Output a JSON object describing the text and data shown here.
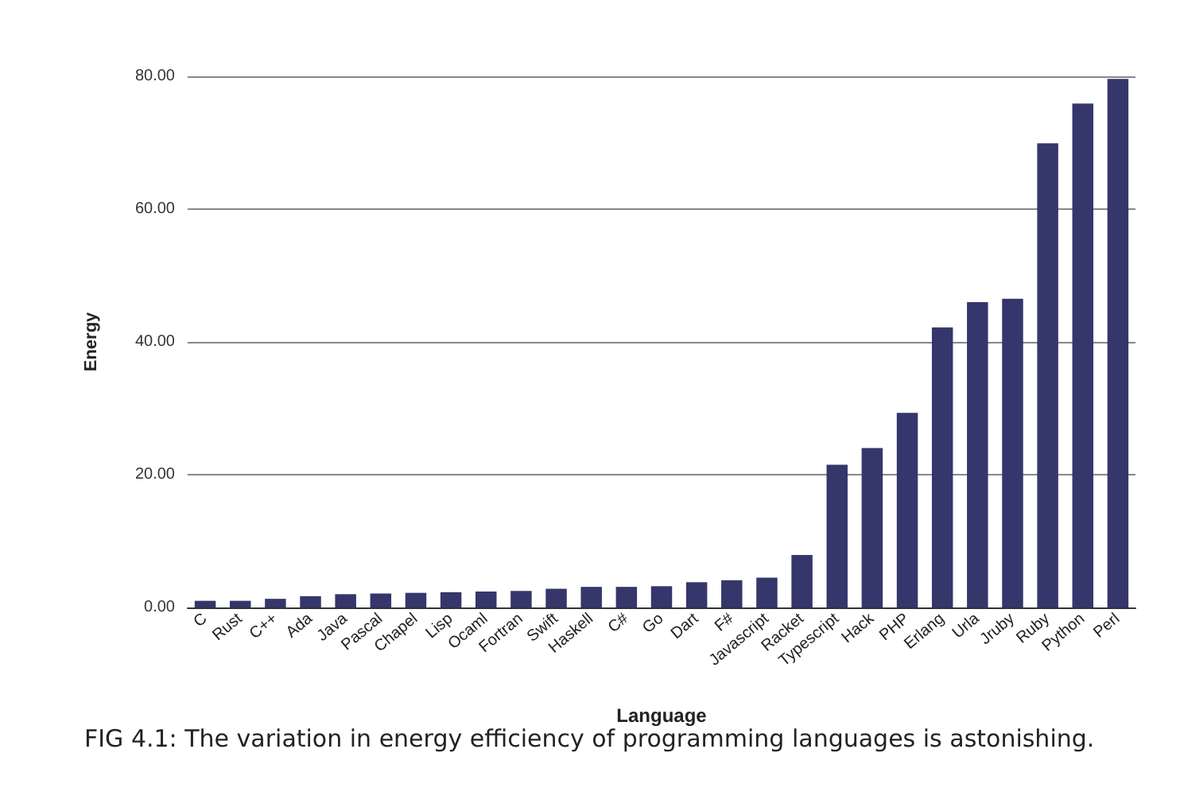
{
  "chart_data": {
    "type": "bar",
    "xlabel": "Language",
    "ylabel": "Energy",
    "categories": [
      "C",
      "Rust",
      "C++",
      "Ada",
      "Java",
      "Pascal",
      "Chapel",
      "Lisp",
      "Ocaml",
      "Fortran",
      "Swift",
      "Haskell",
      "C#",
      "Go",
      "Dart",
      "F#",
      "Javascript",
      "Racket",
      "Typescript",
      "Hack",
      "PHP",
      "Erlang",
      "Urla",
      "Jruby",
      "Ruby",
      "Python",
      "Perl"
    ],
    "values": [
      1.0,
      1.0,
      1.3,
      1.7,
      2.0,
      2.1,
      2.2,
      2.3,
      2.4,
      2.5,
      2.8,
      3.1,
      3.1,
      3.2,
      3.8,
      4.1,
      4.5,
      7.9,
      21.5,
      24.0,
      29.3,
      42.2,
      46.0,
      46.5,
      69.9,
      75.9,
      79.6
    ],
    "color": "#35366b",
    "ylim": [
      0,
      80
    ],
    "yticks": [
      {
        "value": 0,
        "label": "0.00"
      },
      {
        "value": 20,
        "label": "20.00"
      },
      {
        "value": 40,
        "label": "40.00"
      },
      {
        "value": 60,
        "label": "60.00"
      },
      {
        "value": 80,
        "label": "80.00"
      }
    ],
    "grid": "y",
    "annotations": [
      "FIG 4.1: The variation in energy efficiency of programming languages is astonishing."
    ]
  }
}
